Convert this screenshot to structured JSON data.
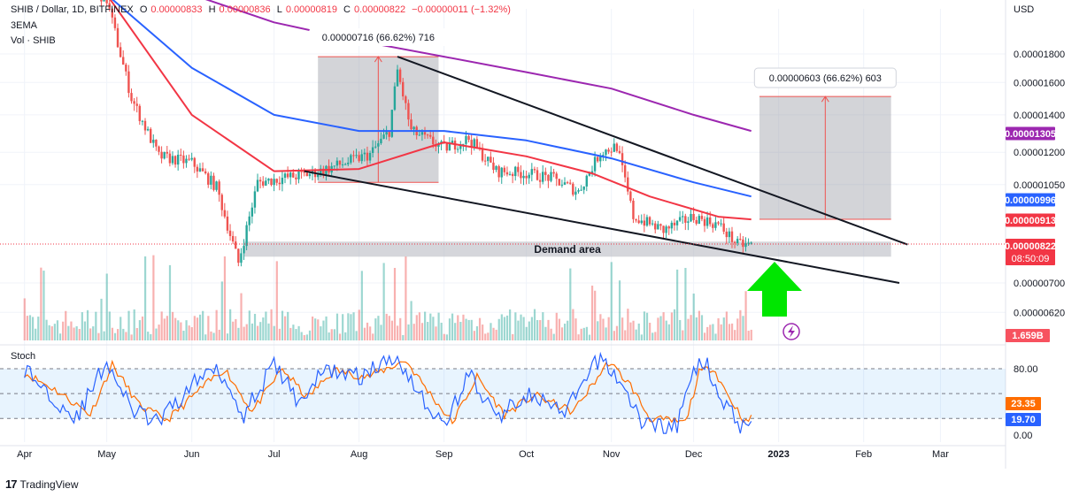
{
  "header": {
    "symbol": "SHIB / Dollar, 1D, BITFINEX",
    "open_label": "O",
    "open": "0.00000833",
    "high_label": "H",
    "high": "0.00000836",
    "low_label": "L",
    "low": "0.00000819",
    "close_label": "C",
    "close": "0.00000822",
    "change": "−0.00000011 (−1.32%)",
    "indicator1": "3EMA",
    "indicator2": "Vol · SHIB"
  },
  "currency": "USD",
  "badges": {
    "ema200": "0.00001305",
    "ema100": "0.00000996",
    "ema50": "0.00000913",
    "price": "0.00000822",
    "countdown": "08:50:09",
    "volume": "1.659B",
    "stoch_k": "23.35",
    "stoch_d": "19.70"
  },
  "annotations": {
    "box1": "0.00000716 (66.62%) 716",
    "box2": "0.00000603 (66.62%) 603",
    "demand": "Demand area"
  },
  "stoch_label": "Stoch",
  "watermark": "TradingView",
  "colors": {
    "up": "#26a69a",
    "down": "#ef5350",
    "ema50": "#f23645",
    "ema100": "#2962ff",
    "ema200": "#9c27b0",
    "stoch_k": "#2962ff",
    "stoch_d": "#ff6d00"
  },
  "chart_data": {
    "type": "candlestick",
    "y_scale": "log",
    "price_ticks": [
      "0.00001800",
      "0.00001600",
      "0.00001400",
      "0.00001200",
      "0.00001050",
      "0.00000700",
      "0.00000620"
    ],
    "stoch_ticks": [
      "80.00",
      "0.00"
    ],
    "months": [
      "Apr",
      "May",
      "Jun",
      "Jul",
      "Aug",
      "Sep",
      "Oct",
      "Nov",
      "Dec",
      "2023",
      "Feb",
      "Mar"
    ],
    "price_path": [
      [
        "2022-04-01",
        2.9e-05
      ],
      [
        "2022-04-15",
        2.6e-05
      ],
      [
        "2022-05-01",
        2.25e-05
      ],
      [
        "2022-05-10",
        1.5e-05
      ],
      [
        "2022-05-20",
        1.18e-05
      ],
      [
        "2022-06-01",
        1.15e-05
      ],
      [
        "2022-06-10",
        1.04e-05
      ],
      [
        "2022-06-18",
        7.6e-06
      ],
      [
        "2022-06-25",
        1.06e-05
      ],
      [
        "2022-07-05",
        1.08e-05
      ],
      [
        "2022-07-15",
        1.1e-05
      ],
      [
        "2022-07-25",
        1.14e-05
      ],
      [
        "2022-08-05",
        1.19e-05
      ],
      [
        "2022-08-12",
        1.31e-05
      ],
      [
        "2022-08-15",
        1.68e-05
      ],
      [
        "2022-08-20",
        1.31e-05
      ],
      [
        "2022-09-01",
        1.22e-05
      ],
      [
        "2022-09-10",
        1.27e-05
      ],
      [
        "2022-09-20",
        1.11e-05
      ],
      [
        "2022-10-01",
        1.1e-05
      ],
      [
        "2022-10-10",
        1.08e-05
      ],
      [
        "2022-10-20",
        1.02e-05
      ],
      [
        "2022-10-28",
        1.2e-05
      ],
      [
        "2022-11-03",
        1.23e-05
      ],
      [
        "2022-11-09",
        9.2e-06
      ],
      [
        "2022-11-20",
        8.7e-06
      ],
      [
        "2022-12-01",
        9.2e-06
      ],
      [
        "2022-12-10",
        8.9e-06
      ],
      [
        "2022-12-17",
        8.2e-06
      ],
      [
        "2022-12-22",
        8.2e-06
      ]
    ],
    "ema50": [
      [
        "2022-04-01",
        2.9e-05
      ],
      [
        "2022-05-01",
        2.3e-05
      ],
      [
        "2022-06-01",
        1.4e-05
      ],
      [
        "2022-07-01",
        1.11e-05
      ],
      [
        "2022-08-01",
        1.12e-05
      ],
      [
        "2022-09-01",
        1.25e-05
      ],
      [
        "2022-10-01",
        1.18e-05
      ],
      [
        "2022-10-25",
        1.1e-05
      ],
      [
        "2022-11-15",
        1e-05
      ],
      [
        "2022-12-10",
        9.2e-06
      ],
      [
        "2022-12-22",
        9.1e-06
      ]
    ],
    "ema100": [
      [
        "2022-04-01",
        3e-05
      ],
      [
        "2022-05-01",
        2.3e-05
      ],
      [
        "2022-06-01",
        1.7e-05
      ],
      [
        "2022-07-01",
        1.4e-05
      ],
      [
        "2022-08-01",
        1.31e-05
      ],
      [
        "2022-09-01",
        1.31e-05
      ],
      [
        "2022-10-01",
        1.26e-05
      ],
      [
        "2022-11-01",
        1.17e-05
      ],
      [
        "2022-12-01",
        1.06e-05
      ],
      [
        "2022-12-22",
        1e-05
      ]
    ],
    "ema200": [
      [
        "2022-04-01",
        3.1e-05
      ],
      [
        "2022-05-01",
        2.7e-05
      ],
      [
        "2022-06-01",
        2.3e-05
      ],
      [
        "2022-07-01",
        2.05e-05
      ],
      [
        "2022-08-01",
        1.9e-05
      ],
      [
        "2022-09-01",
        1.78e-05
      ],
      [
        "2022-10-01",
        1.67e-05
      ],
      [
        "2022-11-01",
        1.56e-05
      ],
      [
        "2022-12-01",
        1.4e-05
      ],
      [
        "2022-12-22",
        1.31e-05
      ]
    ],
    "trendlines": [
      {
        "name": "upper",
        "from": [
          "2022-08-15",
          1.78e-05
        ],
        "to": [
          "2023-02-17",
          8.2e-06
        ]
      },
      {
        "name": "lower",
        "from": [
          "2022-07-12",
          1.11e-05
        ],
        "to": [
          "2023-02-14",
          7e-06
        ]
      }
    ],
    "demand_zone": {
      "from": "2022-06-20",
      "to": "2023-02-11",
      "y_low": 7.8e-06,
      "y_high": 8.3e-06
    },
    "measure_boxes": [
      {
        "from": "2022-07-17",
        "to": "2022-08-30",
        "y_low": 1.06e-05,
        "y_high": 1.78e-05
      },
      {
        "from": "2022-12-25",
        "to": "2023-02-11",
        "y_low": 9.1e-06,
        "y_high": 1.51e-05
      }
    ],
    "stoch_k": [
      [
        "2022-04-01",
        80
      ],
      [
        "2022-04-10",
        50
      ],
      [
        "2022-04-20",
        20
      ],
      [
        "2022-05-01",
        90
      ],
      [
        "2022-05-10",
        30
      ],
      [
        "2022-05-20",
        15
      ],
      [
        "2022-06-01",
        60
      ],
      [
        "2022-06-10",
        85
      ],
      [
        "2022-06-20",
        25
      ],
      [
        "2022-07-01",
        85
      ],
      [
        "2022-07-10",
        40
      ],
      [
        "2022-07-20",
        80
      ],
      [
        "2022-08-01",
        70
      ],
      [
        "2022-08-15",
        95
      ],
      [
        "2022-08-25",
        40
      ],
      [
        "2022-09-01",
        10
      ],
      [
        "2022-09-10",
        75
      ],
      [
        "2022-09-20",
        20
      ],
      [
        "2022-10-01",
        50
      ],
      [
        "2022-10-15",
        25
      ],
      [
        "2022-10-28",
        95
      ],
      [
        "2022-11-05",
        60
      ],
      [
        "2022-11-12",
        15
      ],
      [
        "2022-11-25",
        10
      ],
      [
        "2022-12-01",
        80
      ],
      [
        "2022-12-06",
        85
      ],
      [
        "2022-12-12",
        40
      ],
      [
        "2022-12-18",
        10
      ],
      [
        "2022-12-22",
        22
      ]
    ],
    "stoch_d": [
      [
        "2022-04-01",
        75
      ],
      [
        "2022-04-12",
        55
      ],
      [
        "2022-04-25",
        25
      ],
      [
        "2022-05-03",
        85
      ],
      [
        "2022-05-13",
        35
      ],
      [
        "2022-05-23",
        18
      ],
      [
        "2022-06-04",
        55
      ],
      [
        "2022-06-13",
        80
      ],
      [
        "2022-06-23",
        28
      ],
      [
        "2022-07-04",
        80
      ],
      [
        "2022-07-13",
        45
      ],
      [
        "2022-07-23",
        78
      ],
      [
        "2022-08-04",
        70
      ],
      [
        "2022-08-18",
        90
      ],
      [
        "2022-08-28",
        45
      ],
      [
        "2022-09-04",
        15
      ],
      [
        "2022-09-13",
        70
      ],
      [
        "2022-09-23",
        25
      ],
      [
        "2022-10-04",
        48
      ],
      [
        "2022-10-18",
        28
      ],
      [
        "2022-10-31",
        88
      ],
      [
        "2022-11-08",
        60
      ],
      [
        "2022-11-15",
        20
      ],
      [
        "2022-11-28",
        15
      ],
      [
        "2022-12-03",
        75
      ],
      [
        "2022-12-08",
        82
      ],
      [
        "2022-12-14",
        45
      ],
      [
        "2022-12-20",
        15
      ],
      [
        "2022-12-22",
        20
      ]
    ]
  }
}
